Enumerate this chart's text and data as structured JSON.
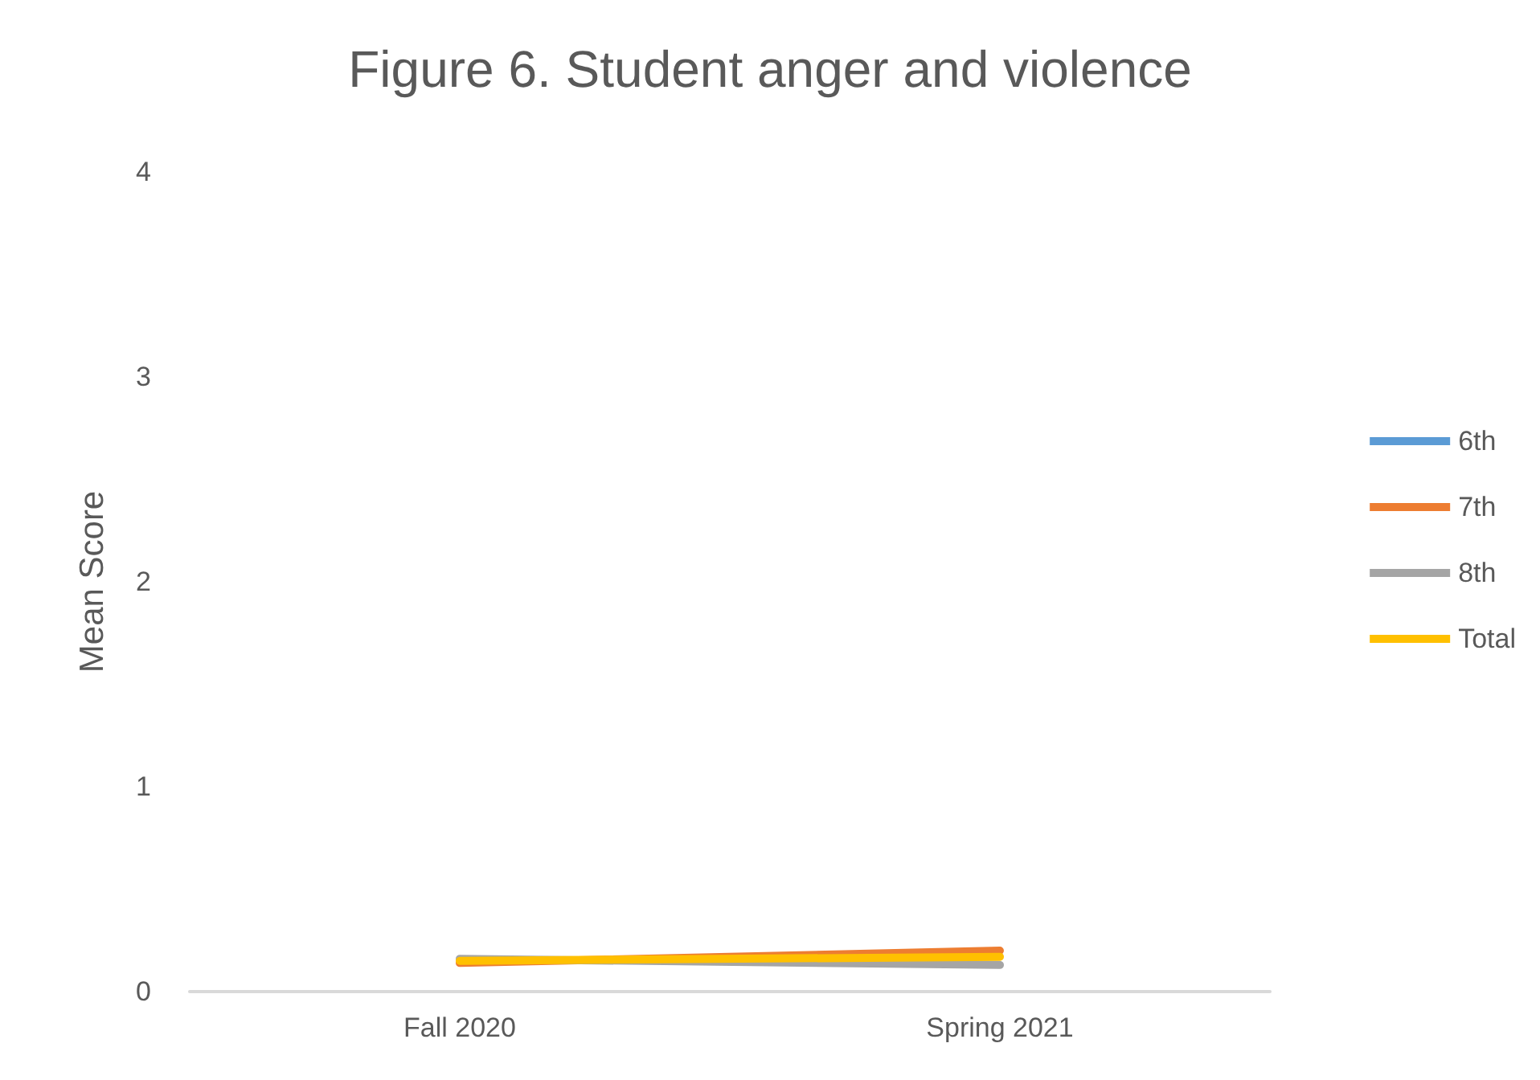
{
  "chart_data": {
    "type": "line",
    "title": "Figure 6. Student anger and violence",
    "ylabel": "Mean Score",
    "categories": [
      "Fall 2020",
      "Spring 2021"
    ],
    "series": [
      {
        "name": "6th",
        "color": "#5b9bd5",
        "values": [
          null,
          null
        ]
      },
      {
        "name": "7th",
        "color": "#ed7d31",
        "values": [
          0.14,
          0.2
        ]
      },
      {
        "name": "8th",
        "color": "#a5a5a5",
        "values": [
          0.16,
          0.13
        ]
      },
      {
        "name": "Total",
        "color": "#ffc000",
        "values": [
          0.15,
          0.17
        ]
      }
    ],
    "ylim": [
      0,
      4
    ],
    "yticks": [
      0,
      1,
      2,
      3,
      4
    ],
    "grid": false,
    "legend": "right",
    "marker": "none",
    "line_style": "solid"
  }
}
